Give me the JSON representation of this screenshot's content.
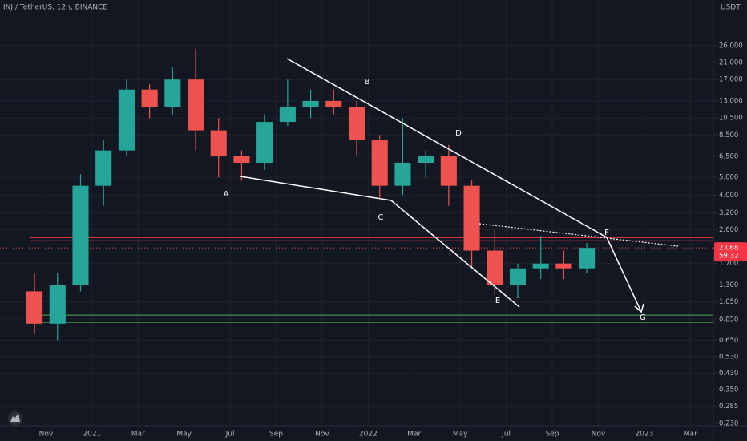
{
  "chart_data": {
    "type": "candlestick",
    "title": "INJ / TetherUS, 12h, BINANCE",
    "y_unit": "USDT",
    "log_scale": true,
    "grid": true,
    "up_color": "#26a69a",
    "down_color": "#ef5350",
    "x": [
      "2020-10",
      "2020-11",
      "2020-12",
      "2021-01",
      "2021-02",
      "2021-03",
      "2021-04",
      "2021-05",
      "2021-06",
      "2021-07",
      "2021-08",
      "2021-09",
      "2021-10",
      "2021-11",
      "2021-12",
      "2022-01",
      "2022-02",
      "2022-03",
      "2022-04",
      "2022-05",
      "2022-06",
      "2022-07",
      "2022-08",
      "2022-09",
      "2022-10"
    ],
    "open": [
      1.2,
      0.8,
      1.3,
      4.5,
      7,
      15,
      12,
      17,
      9,
      6.5,
      6,
      10,
      12,
      13,
      12,
      8,
      4.5,
      6,
      6.5,
      4.5,
      2,
      1.3,
      1.6,
      1.7,
      1.6
    ],
    "high": [
      1.5,
      1.5,
      5.2,
      8,
      17,
      16,
      20,
      25,
      10.5,
      7,
      11,
      17,
      15,
      15,
      13,
      8.5,
      10.5,
      7,
      7.5,
      4.8,
      2.6,
      1.7,
      2.4,
      2.0,
      2.2
    ],
    "low": [
      0.7,
      0.65,
      1.2,
      3.5,
      6.5,
      10.5,
      11,
      7,
      5,
      4.8,
      5.5,
      9.5,
      10.5,
      11,
      6.5,
      3.8,
      4,
      5,
      3.5,
      1.6,
      1.15,
      1.1,
      1.4,
      1.4,
      1.5
    ],
    "close": [
      0.8,
      1.3,
      4.5,
      7,
      15,
      12,
      17,
      9,
      6.5,
      6,
      10,
      12,
      13,
      12,
      8,
      4.5,
      6,
      6.5,
      4.5,
      2,
      1.3,
      1.6,
      1.7,
      1.6,
      2.068
    ],
    "xlim": [
      "2020-09",
      "2023-04"
    ],
    "xticks": [
      {
        "value": "2020-11",
        "label": "Nov"
      },
      {
        "value": "2021-01",
        "label": "2021"
      },
      {
        "value": "2021-03",
        "label": "Mar"
      },
      {
        "value": "2021-05",
        "label": "May"
      },
      {
        "value": "2021-07",
        "label": "Jul"
      },
      {
        "value": "2021-09",
        "label": "Sep"
      },
      {
        "value": "2021-11",
        "label": "Nov"
      },
      {
        "value": "2022-01",
        "label": "2022"
      },
      {
        "value": "2022-03",
        "label": "Mar"
      },
      {
        "value": "2022-05",
        "label": "May"
      },
      {
        "value": "2022-07",
        "label": "Jul"
      },
      {
        "value": "2022-09",
        "label": "Sep"
      },
      {
        "value": "2022-11",
        "label": "Nov"
      },
      {
        "value": "2023-01",
        "label": "2023"
      },
      {
        "value": "2023-03",
        "label": "Mar"
      }
    ],
    "ylim": [
      0.204,
      46
    ],
    "yticks": [
      {
        "value": 26,
        "label": "26.000"
      },
      {
        "value": 21,
        "label": "21.000"
      },
      {
        "value": 17,
        "label": "17.000"
      },
      {
        "value": 13,
        "label": "13.000"
      },
      {
        "value": 10.5,
        "label": "10.500"
      },
      {
        "value": 8.5,
        "label": "8.500"
      },
      {
        "value": 6.5,
        "label": "6.500"
      },
      {
        "value": 5,
        "label": "5.000"
      },
      {
        "value": 4,
        "label": "4.000"
      },
      {
        "value": 3.2,
        "label": "3.200"
      },
      {
        "value": 2.6,
        "label": "2.600"
      },
      {
        "value": 1.7,
        "label": "1.700"
      },
      {
        "value": 1.3,
        "label": "1.300"
      },
      {
        "value": 1.05,
        "label": "1.050"
      },
      {
        "value": 0.85,
        "label": "0.850"
      },
      {
        "value": 0.65,
        "label": "0.650"
      },
      {
        "value": 0.53,
        "label": "0.530"
      },
      {
        "value": 0.43,
        "label": "0.430"
      },
      {
        "value": 0.35,
        "label": "0.350"
      },
      {
        "value": 0.285,
        "label": "0.285"
      },
      {
        "value": 0.23,
        "label": "0.230"
      }
    ],
    "last_price": 2.068,
    "countdown": "59:32",
    "support_zone": [
      0.814,
      0.891
    ],
    "resistance_zone": [
      2.26,
      2.35
    ],
    "annotations": [
      "A",
      "B",
      "C",
      "D",
      "E",
      "F",
      "G"
    ]
  }
}
